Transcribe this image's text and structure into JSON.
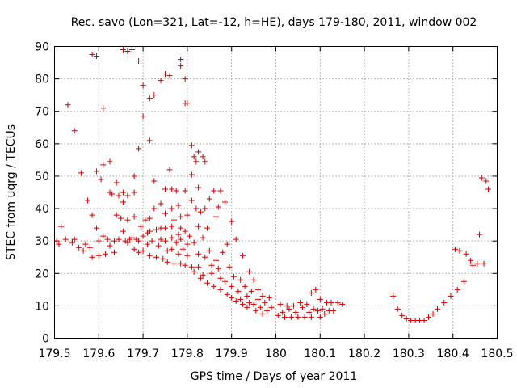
{
  "chart_data": {
    "type": "scatter",
    "title": "Rec. savo (Lon=321, Lat=-12, h=HE), days 179-180, 2011, window 002",
    "xlabel": "GPS time / Days of year 2011",
    "ylabel": "STEC from uqrg / TECUs",
    "xlim": [
      179.5,
      180.5
    ],
    "ylim": [
      0,
      90
    ],
    "xticks": [
      179.5,
      179.6,
      179.7,
      179.8,
      179.9,
      180,
      180.1,
      180.2,
      180.3,
      180.4,
      180.5
    ],
    "xtick_labels": [
      "179.5",
      "179.6",
      "179.7",
      "179.8",
      "179.9",
      "180",
      "180.1",
      "180.2",
      "180.3",
      "180.4",
      "180.5"
    ],
    "yticks": [
      0,
      10,
      20,
      30,
      40,
      50,
      60,
      70,
      80,
      90
    ],
    "ytick_labels": [
      "0",
      "10",
      "20",
      "30",
      "40",
      "50",
      "60",
      "70",
      "80",
      "90"
    ],
    "grid": true,
    "marker": "plus",
    "color": "#cc0000",
    "points": [
      [
        179.505,
        30
      ],
      [
        179.51,
        29
      ],
      [
        179.515,
        34.5
      ],
      [
        179.525,
        30.5
      ],
      [
        179.53,
        72
      ],
      [
        179.54,
        29.5
      ],
      [
        179.545,
        64
      ],
      [
        179.545,
        30.5
      ],
      [
        179.555,
        28
      ],
      [
        179.56,
        51
      ],
      [
        179.565,
        27
      ],
      [
        179.57,
        29
      ],
      [
        179.575,
        42.5
      ],
      [
        179.58,
        28
      ],
      [
        179.585,
        87.5
      ],
      [
        179.585,
        38
      ],
      [
        179.585,
        25
      ],
      [
        179.595,
        87
      ],
      [
        179.595,
        51.5
      ],
      [
        179.595,
        34
      ],
      [
        179.6,
        30
      ],
      [
        179.6,
        25.5
      ],
      [
        179.605,
        49
      ],
      [
        179.61,
        71
      ],
      [
        179.61,
        53.5
      ],
      [
        179.61,
        31.5
      ],
      [
        179.615,
        26
      ],
      [
        179.62,
        30.5
      ],
      [
        179.625,
        54.5
      ],
      [
        179.625,
        45
      ],
      [
        179.625,
        28.5
      ],
      [
        179.63,
        44.5
      ],
      [
        179.635,
        30
      ],
      [
        179.635,
        26.5
      ],
      [
        179.64,
        48
      ],
      [
        179.64,
        38
      ],
      [
        179.645,
        44
      ],
      [
        179.645,
        30.5
      ],
      [
        179.65,
        37
      ],
      [
        179.655,
        89
      ],
      [
        179.655,
        45
      ],
      [
        179.655,
        42
      ],
      [
        179.655,
        33
      ],
      [
        179.66,
        30
      ],
      [
        179.665,
        88.5
      ],
      [
        179.665,
        44
      ],
      [
        179.665,
        36.5
      ],
      [
        179.665,
        29.5
      ],
      [
        179.67,
        30.5
      ],
      [
        179.675,
        89
      ],
      [
        179.675,
        31
      ],
      [
        179.68,
        50
      ],
      [
        179.68,
        45
      ],
      [
        179.68,
        37.5
      ],
      [
        179.68,
        27.5
      ],
      [
        179.685,
        30.5
      ],
      [
        179.69,
        85.5
      ],
      [
        179.69,
        58.5
      ],
      [
        179.69,
        30
      ],
      [
        179.69,
        26.5
      ],
      [
        179.695,
        34.5
      ],
      [
        179.7,
        68.5
      ],
      [
        179.7,
        78
      ],
      [
        179.7,
        31.5
      ],
      [
        179.7,
        27
      ],
      [
        179.705,
        36.5
      ],
      [
        179.71,
        32.5
      ],
      [
        179.71,
        29
      ],
      [
        179.715,
        61
      ],
      [
        179.715,
        74
      ],
      [
        179.715,
        37
      ],
      [
        179.715,
        33
      ],
      [
        179.715,
        25.5
      ],
      [
        179.72,
        30
      ],
      [
        179.725,
        75
      ],
      [
        179.725,
        48.5
      ],
      [
        179.725,
        40
      ],
      [
        179.73,
        33.5
      ],
      [
        179.73,
        25
      ],
      [
        179.735,
        28.5
      ],
      [
        179.74,
        79.5
      ],
      [
        179.74,
        41.5
      ],
      [
        179.74,
        34
      ],
      [
        179.74,
        30.5
      ],
      [
        179.745,
        24.5
      ],
      [
        179.75,
        81.5
      ],
      [
        179.75,
        46
      ],
      [
        179.75,
        38.5
      ],
      [
        179.75,
        34
      ],
      [
        179.75,
        30
      ],
      [
        179.755,
        27
      ],
      [
        179.755,
        23.5
      ],
      [
        179.76,
        81
      ],
      [
        179.76,
        52
      ],
      [
        179.765,
        46
      ],
      [
        179.765,
        40
      ],
      [
        179.765,
        34.5
      ],
      [
        179.765,
        31
      ],
      [
        179.765,
        27.5
      ],
      [
        179.77,
        36.5
      ],
      [
        179.77,
        23
      ],
      [
        179.775,
        45.5
      ],
      [
        179.775,
        29.5
      ],
      [
        179.78,
        41
      ],
      [
        179.78,
        32
      ],
      [
        179.78,
        26
      ],
      [
        179.785,
        86
      ],
      [
        179.785,
        84
      ],
      [
        179.785,
        37.5
      ],
      [
        179.785,
        34
      ],
      [
        179.785,
        30.5
      ],
      [
        179.785,
        23
      ],
      [
        179.79,
        27.5
      ],
      [
        179.795,
        80
      ],
      [
        179.795,
        72.5
      ],
      [
        179.795,
        45.5
      ],
      [
        179.795,
        33
      ],
      [
        179.795,
        22.5
      ],
      [
        179.8,
        72.5
      ],
      [
        179.8,
        38
      ],
      [
        179.8,
        29
      ],
      [
        179.8,
        25.5
      ],
      [
        179.805,
        31.5
      ],
      [
        179.81,
        59.5
      ],
      [
        179.81,
        50.5
      ],
      [
        179.81,
        42.5
      ],
      [
        179.81,
        22
      ],
      [
        179.815,
        56
      ],
      [
        179.815,
        29.5
      ],
      [
        179.815,
        20.5
      ],
      [
        179.82,
        54.5
      ],
      [
        179.82,
        40
      ],
      [
        179.825,
        57.5
      ],
      [
        179.825,
        46.5
      ],
      [
        179.825,
        34.5
      ],
      [
        179.825,
        26
      ],
      [
        179.825,
        22
      ],
      [
        179.83,
        39
      ],
      [
        179.83,
        18.5
      ],
      [
        179.835,
        56
      ],
      [
        179.835,
        31
      ],
      [
        179.835,
        19.5
      ],
      [
        179.84,
        54.5
      ],
      [
        179.84,
        40
      ],
      [
        179.84,
        25
      ],
      [
        179.845,
        34
      ],
      [
        179.845,
        17
      ],
      [
        179.85,
        43
      ],
      [
        179.85,
        27
      ],
      [
        179.855,
        22.5
      ],
      [
        179.855,
        20
      ],
      [
        179.86,
        45.5
      ],
      [
        179.86,
        16
      ],
      [
        179.865,
        37.5
      ],
      [
        179.865,
        24
      ],
      [
        179.87,
        40.5
      ],
      [
        179.87,
        21.5
      ],
      [
        179.875,
        45.5
      ],
      [
        179.875,
        18.5
      ],
      [
        179.875,
        15
      ],
      [
        179.88,
        26.5
      ],
      [
        179.885,
        42
      ],
      [
        179.885,
        17.5
      ],
      [
        179.89,
        29
      ],
      [
        179.89,
        13.5
      ],
      [
        179.895,
        22
      ],
      [
        179.9,
        36
      ],
      [
        179.9,
        16
      ],
      [
        179.9,
        12.5
      ],
      [
        179.905,
        19
      ],
      [
        179.91,
        30.5
      ],
      [
        179.91,
        11.5
      ],
      [
        179.915,
        14.5
      ],
      [
        179.92,
        18
      ],
      [
        179.92,
        12
      ],
      [
        179.925,
        25.5
      ],
      [
        179.925,
        10.5
      ],
      [
        179.93,
        16
      ],
      [
        179.935,
        13
      ],
      [
        179.935,
        9.5
      ],
      [
        179.94,
        20.5
      ],
      [
        179.94,
        11
      ],
      [
        179.945,
        14.5
      ],
      [
        179.95,
        18
      ],
      [
        179.95,
        10.5
      ],
      [
        179.955,
        8.5
      ],
      [
        179.96,
        12
      ],
      [
        179.96,
        15
      ],
      [
        179.965,
        9.5
      ],
      [
        179.97,
        13
      ],
      [
        179.97,
        7.5
      ],
      [
        179.975,
        11
      ],
      [
        179.98,
        8.5
      ],
      [
        179.985,
        12.5
      ],
      [
        179.99,
        9.5
      ],
      [
        180.005,
        7
      ],
      [
        180.01,
        10.5
      ],
      [
        180.015,
        8
      ],
      [
        180.02,
        6.5
      ],
      [
        180.025,
        10
      ],
      [
        180.03,
        9
      ],
      [
        180.035,
        6.5
      ],
      [
        180.04,
        10
      ],
      [
        180.045,
        8
      ],
      [
        180.05,
        6.5
      ],
      [
        180.055,
        11
      ],
      [
        180.06,
        9.5
      ],
      [
        180.065,
        6.5
      ],
      [
        180.07,
        10.5
      ],
      [
        180.075,
        8
      ],
      [
        180.08,
        6.5
      ],
      [
        180.08,
        14
      ],
      [
        180.085,
        9
      ],
      [
        180.09,
        15
      ],
      [
        180.095,
        8.5
      ],
      [
        180.1,
        6.5
      ],
      [
        180.1,
        12
      ],
      [
        180.105,
        9
      ],
      [
        180.11,
        7.5
      ],
      [
        180.115,
        11
      ],
      [
        180.12,
        8.5
      ],
      [
        180.125,
        11
      ],
      [
        180.13,
        8.5
      ],
      [
        180.14,
        11
      ],
      [
        180.15,
        10.5
      ],
      [
        180.265,
        13
      ],
      [
        180.275,
        9
      ],
      [
        180.285,
        7
      ],
      [
        180.295,
        6
      ],
      [
        180.305,
        5.5
      ],
      [
        180.315,
        5.5
      ],
      [
        180.325,
        5.5
      ],
      [
        180.335,
        5.5
      ],
      [
        180.345,
        6.5
      ],
      [
        180.355,
        7.5
      ],
      [
        180.365,
        9
      ],
      [
        180.38,
        11
      ],
      [
        180.395,
        13
      ],
      [
        180.405,
        27.5
      ],
      [
        180.41,
        15
      ],
      [
        180.415,
        27
      ],
      [
        180.425,
        17.5
      ],
      [
        180.43,
        26
      ],
      [
        180.44,
        24
      ],
      [
        180.445,
        22.5
      ],
      [
        180.455,
        23
      ],
      [
        180.46,
        32
      ],
      [
        180.465,
        49.5
      ],
      [
        180.47,
        23
      ],
      [
        180.475,
        48.5
      ],
      [
        180.48,
        46
      ]
    ]
  }
}
